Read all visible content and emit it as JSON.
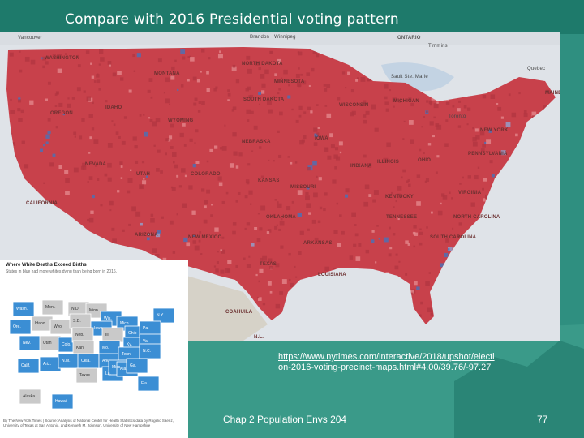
{
  "slide": {
    "title": "Compare with 2016 Presidential voting pattern",
    "url": "https://www.nytimes.com/interactive/2018/upshot/election-2016-voting-precinct-maps.html#4.00/39.76/-97.27",
    "footer": "Chap 2 Population Envs 204",
    "page_number": "77"
  },
  "colors": {
    "background": "#2f8f80",
    "republican": "#c8414b",
    "democrat": "#3f76c0",
    "inset_blue": "#3b8ed4",
    "inset_gray": "#c9c9c9"
  },
  "main_map": {
    "labels": [
      {
        "text": "Vancouver",
        "type": "city"
      },
      {
        "text": "Brandon",
        "type": "city"
      },
      {
        "text": "Winnipeg",
        "type": "city"
      },
      {
        "text": "ONTARIO",
        "type": "country"
      },
      {
        "text": "Timmins",
        "type": "city"
      },
      {
        "text": "WASHINGTON",
        "type": "state"
      },
      {
        "text": "NORTH DAKOTA",
        "type": "state"
      },
      {
        "text": "Sault Ste. Marie",
        "type": "city"
      },
      {
        "text": "Quebec",
        "type": "city"
      },
      {
        "text": "MONTANA",
        "type": "state"
      },
      {
        "text": "MINNESOTA",
        "type": "state"
      },
      {
        "text": "MAINE",
        "type": "state"
      },
      {
        "text": "OREGON",
        "type": "state"
      },
      {
        "text": "IDAHO",
        "type": "state"
      },
      {
        "text": "SOUTH DAKOTA",
        "type": "state"
      },
      {
        "text": "WISCONSIN",
        "type": "state"
      },
      {
        "text": "MICHIGAN",
        "type": "state"
      },
      {
        "text": "WYOMING",
        "type": "state"
      },
      {
        "text": "Toronto",
        "type": "city"
      },
      {
        "text": "NEW YORK",
        "type": "state"
      },
      {
        "text": "NEBRASKA",
        "type": "state"
      },
      {
        "text": "IOWA",
        "type": "state"
      },
      {
        "text": "PENNSYLVANIA",
        "type": "state"
      },
      {
        "text": "NEVADA",
        "type": "state"
      },
      {
        "text": "UTAH",
        "type": "state"
      },
      {
        "text": "COLORADO",
        "type": "state"
      },
      {
        "text": "ILLINOIS",
        "type": "state"
      },
      {
        "text": "INDIANA",
        "type": "state"
      },
      {
        "text": "OHIO",
        "type": "state"
      },
      {
        "text": "KANSAS",
        "type": "state"
      },
      {
        "text": "MISSOURI",
        "type": "state"
      },
      {
        "text": "VIRGINIA",
        "type": "state"
      },
      {
        "text": "CALIFORNIA",
        "type": "state"
      },
      {
        "text": "KENTUCKY",
        "type": "state"
      },
      {
        "text": "OKLAHOMA",
        "type": "state"
      },
      {
        "text": "TENNESSEE",
        "type": "state"
      },
      {
        "text": "NORTH CAROLINA",
        "type": "state"
      },
      {
        "text": "ARIZONA",
        "type": "state"
      },
      {
        "text": "NEW MEXICO",
        "type": "state"
      },
      {
        "text": "ARKANSAS",
        "type": "state"
      },
      {
        "text": "SOUTH CAROLINA",
        "type": "state"
      },
      {
        "text": "TEXAS",
        "type": "state"
      },
      {
        "text": "LOUISIANA",
        "type": "state"
      },
      {
        "text": "COAHUILA",
        "type": "state"
      },
      {
        "text": "N.L.",
        "type": "state"
      }
    ]
  },
  "inset": {
    "title": "Where White Deaths Exceed Births",
    "subtitle": "States in blue had more whites dying than being born in 2016.",
    "source": "By The New York Times | Source: Analysis of National Center for Health Statistics data by Rogelio Sáenz, University of Texas at San Antonio, and Kenneth M. Johnson, University of New Hampshire",
    "state_labels": [
      {
        "text": "Wash.",
        "blue": true
      },
      {
        "text": "Mont.",
        "blue": false
      },
      {
        "text": "N.D.",
        "blue": false
      },
      {
        "text": "Minn.",
        "blue": false
      },
      {
        "text": "Wis.",
        "blue": true
      },
      {
        "text": "Mich.",
        "blue": true
      },
      {
        "text": "N.Y.",
        "blue": true
      },
      {
        "text": "Ore.",
        "blue": true
      },
      {
        "text": "Idaho",
        "blue": false
      },
      {
        "text": "Wyo.",
        "blue": false
      },
      {
        "text": "S.D.",
        "blue": false
      },
      {
        "text": "Iowa",
        "blue": true
      },
      {
        "text": "Ill.",
        "blue": false
      },
      {
        "text": "Ohio",
        "blue": true
      },
      {
        "text": "Pa.",
        "blue": true
      },
      {
        "text": "Nev.",
        "blue": true
      },
      {
        "text": "Utah",
        "blue": false
      },
      {
        "text": "Colo.",
        "blue": true
      },
      {
        "text": "Neb.",
        "blue": false
      },
      {
        "text": "Kan.",
        "blue": false
      },
      {
        "text": "Mo.",
        "blue": true
      },
      {
        "text": "Ky.",
        "blue": true
      },
      {
        "text": "Va.",
        "blue": true
      },
      {
        "text": "Calif.",
        "blue": true
      },
      {
        "text": "Ariz.",
        "blue": true
      },
      {
        "text": "N.M.",
        "blue": true
      },
      {
        "text": "Okla.",
        "blue": true
      },
      {
        "text": "Ark.",
        "blue": true
      },
      {
        "text": "Tenn.",
        "blue": true
      },
      {
        "text": "N.C.",
        "blue": true
      },
      {
        "text": "Texas",
        "blue": false
      },
      {
        "text": "La.",
        "blue": true
      },
      {
        "text": "Miss.",
        "blue": true
      },
      {
        "text": "Ala.",
        "blue": true
      },
      {
        "text": "Ga.",
        "blue": true
      },
      {
        "text": "Fla.",
        "blue": true
      },
      {
        "text": "Alaska",
        "blue": false
      },
      {
        "text": "Hawaii",
        "blue": true
      }
    ]
  }
}
